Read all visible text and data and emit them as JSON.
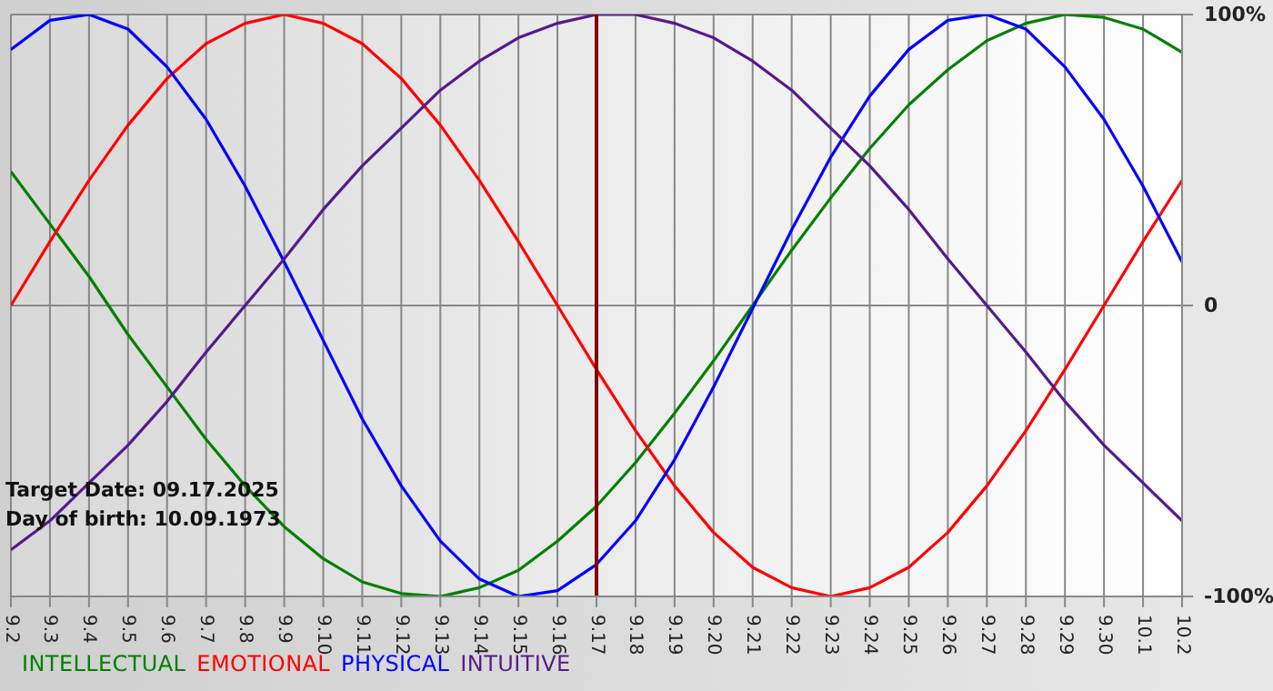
{
  "chart_data": {
    "type": "line",
    "categories": [
      "9.2",
      "9.3",
      "9.4",
      "9.5",
      "9.6",
      "9.7",
      "9.8",
      "9.9",
      "9.10",
      "9.11",
      "9.12",
      "9.13",
      "9.14",
      "9.15",
      "9.16",
      "9.17",
      "9.18",
      "9.19",
      "9.20",
      "9.21",
      "9.22",
      "9.23",
      "9.24",
      "9.25",
      "9.26",
      "9.27",
      "9.28",
      "9.29",
      "9.30",
      "10.1",
      "10.2"
    ],
    "series": [
      {
        "name": "INTELLECTUAL",
        "color": "#008000",
        "values": [
          46,
          28,
          10,
          -10,
          -28,
          -46,
          -62,
          -76,
          -87,
          -95,
          -99,
          -100,
          -97,
          -91,
          -81,
          -69,
          -54,
          -37,
          -19,
          0,
          19,
          37,
          54,
          69,
          81,
          91,
          97,
          100,
          99,
          95,
          87
        ]
      },
      {
        "name": "EMOTIONAL",
        "color": "#ff0000",
        "values": [
          0,
          22,
          43,
          62,
          78,
          90,
          97,
          100,
          97,
          90,
          78,
          62,
          43,
          22,
          0,
          -22,
          -43,
          -62,
          -78,
          -90,
          -97,
          -100,
          -97,
          -90,
          -78,
          -62,
          -43,
          -22,
          0,
          22,
          43
        ]
      },
      {
        "name": "PHYSICAL",
        "color": "#0000ff",
        "values": [
          88,
          98,
          100,
          95,
          82,
          64,
          41,
          15,
          -12,
          -39,
          -62,
          -81,
          -94,
          -100,
          -98,
          -89,
          -74,
          -53,
          -28,
          -1,
          26,
          51,
          72,
          88,
          98,
          100,
          95,
          82,
          64,
          41,
          15
        ]
      },
      {
        "name": "INTUITIVE",
        "color": "#551a8b",
        "values": [
          -84,
          -74,
          -61,
          -48,
          -33,
          -16,
          0,
          16,
          33,
          48,
          61,
          74,
          84,
          92,
          97,
          100,
          100,
          97,
          92,
          84,
          74,
          61,
          48,
          33,
          16,
          0,
          -16,
          -33,
          -48,
          -61,
          -74
        ]
      }
    ],
    "ylim": [
      -100,
      100
    ],
    "yticks": [
      {
        "value": 100,
        "label": "100%"
      },
      0,
      {
        "value": -100,
        "label": "-100%"
      }
    ],
    "grid": true,
    "legend": "bottom",
    "marker": "none",
    "line_style": "solid",
    "ref_lines": [
      {
        "axis": "x",
        "value": "9.17",
        "color": "#800000"
      }
    ],
    "annotations": [
      "Target Date: 09.17.2025",
      "Day of birth: 10.09.1973"
    ]
  }
}
